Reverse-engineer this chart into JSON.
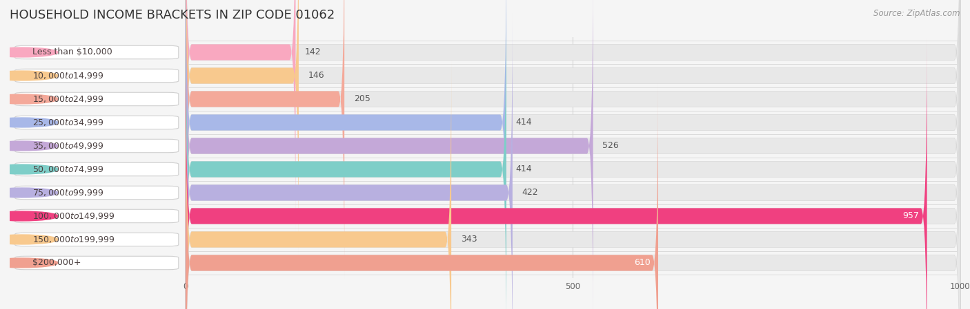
{
  "title": "HOUSEHOLD INCOME BRACKETS IN ZIP CODE 01062",
  "source": "Source: ZipAtlas.com",
  "categories": [
    "Less than $10,000",
    "$10,000 to $14,999",
    "$15,000 to $24,999",
    "$25,000 to $34,999",
    "$35,000 to $49,999",
    "$50,000 to $74,999",
    "$75,000 to $99,999",
    "$100,000 to $149,999",
    "$150,000 to $199,999",
    "$200,000+"
  ],
  "values": [
    142,
    146,
    205,
    414,
    526,
    414,
    422,
    957,
    343,
    610
  ],
  "bar_colors": [
    "#f9a8c0",
    "#f8c98e",
    "#f4a99a",
    "#a8b8e8",
    "#c4a8d8",
    "#7ecec8",
    "#b8b0e0",
    "#f04080",
    "#f8c98e",
    "#f0a090"
  ],
  "value_inside": [
    false,
    false,
    false,
    false,
    false,
    false,
    false,
    true,
    false,
    true
  ],
  "xlim": [
    0,
    1000
  ],
  "xticks": [
    0,
    500,
    1000
  ],
  "background_color": "#f5f5f5",
  "bar_bg_color": "#e8e8e8",
  "title_fontsize": 13,
  "label_fontsize": 9,
  "value_fontsize": 9,
  "value_inside_color": "white",
  "value_outside_color": "#555555"
}
